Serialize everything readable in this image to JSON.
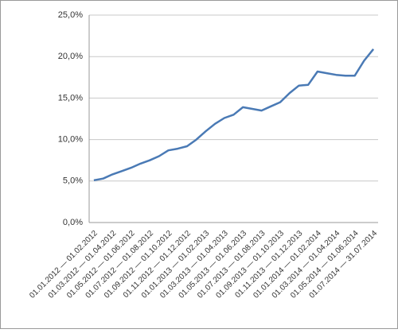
{
  "chart_data": {
    "type": "line",
    "categories": [
      "01.01.2012 — 01.02.2012",
      null,
      "01.03.2012 — 01.04.2012",
      null,
      "01.05.2012 — 01.06.2012",
      null,
      "01.07.2012 — 01.08.2012",
      null,
      "01.09.2012 — 01.10.2012",
      null,
      "01.11.2012 — 01.12.2012",
      null,
      "01.01.2013 — 01.02.2013",
      null,
      "01.03.2013 — 01.04.2013",
      null,
      "01.05.2013 — 01.06.2013",
      null,
      "01.07.2013 — 01.08.2013",
      null,
      "01.09.2013 — 01.10.2013",
      null,
      "01.11.2013 — 01.12.2013",
      null,
      "01.01.2014 — 01.02.2014",
      null,
      "01.03.2014 — 01.04.2014",
      null,
      "01.05.2014 — 01.06.2014",
      null,
      "01.07.2014 — 31.07.2014"
    ],
    "values": [
      5.1,
      5.3,
      5.8,
      6.2,
      6.6,
      7.1,
      7.5,
      8.0,
      8.7,
      8.9,
      9.2,
      10.0,
      11.0,
      11.9,
      12.6,
      13.0,
      13.9,
      13.7,
      13.5,
      14.0,
      14.5,
      15.6,
      16.5,
      16.6,
      18.2,
      18.0,
      17.8,
      17.7,
      17.7,
      19.5,
      20.9
    ],
    "color": "#4a7ab5",
    "ylim": [
      0,
      25
    ],
    "yticks": [
      {
        "value": 0,
        "label": "0,0%"
      },
      {
        "value": 5,
        "label": "5,0%"
      },
      {
        "value": 10,
        "label": "10,0%"
      },
      {
        "value": 15,
        "label": "15,0%"
      },
      {
        "value": 20,
        "label": "20,0%"
      },
      {
        "value": 25,
        "label": "25,0%"
      }
    ],
    "grid": true
  }
}
